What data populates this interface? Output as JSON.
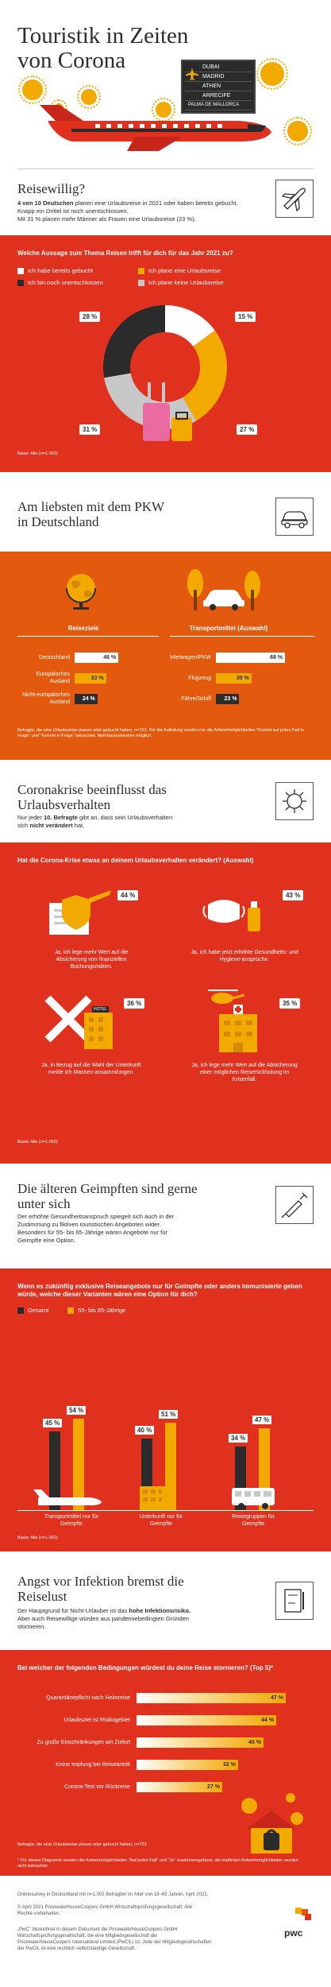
{
  "hero": {
    "title": "Touristik in Zeiten von Corona",
    "destinations": [
      "DUBAI",
      "MADRID",
      "ATHEN",
      "ARRECIFE",
      "PALMA DE MALLORCA"
    ]
  },
  "s1": {
    "title": "Reisewillig?",
    "text_bold": "4 von 10 Deutschen",
    "text_rest": " planen eine Urlaubsreise in 2021 oder haben bereits gebucht. Knapp ein Drittel ist noch unentschlossen.",
    "text2": "Mit 31 % planen mehr Männer als Frauen eine Urlaubsreise (23 %).",
    "question": "Welche Aussage zum Thema Reisen trifft für dich für das Jahr 2021 zu?",
    "base": "Basis: Alle (n=1.002)"
  },
  "chart_data": [
    {
      "type": "pie",
      "title": "Welche Aussage zum Thema Reisen trifft für dich für das Jahr 2021 zu?",
      "categories": [
        "Ich habe bereits gebucht",
        "Ich plane eine Urlaubsreise",
        "Ich bin noch unentschlossen",
        "Ich plane keine Urlaubsreise"
      ],
      "values": [
        15,
        27,
        28,
        31
      ],
      "value_labels": [
        "15 %",
        "27 %",
        "28 %",
        "31 %"
      ],
      "colors": [
        "#ffffff",
        "#f2a900",
        "#2b2b2b",
        "#c8c8c8"
      ],
      "legend_placement": "top"
    },
    {
      "type": "bar",
      "title": "Reiseziele",
      "categories": [
        "Deutschland",
        "Europäisches Ausland",
        "Nicht-europäisches Ausland"
      ],
      "values": [
        46,
        33,
        24
      ],
      "value_labels": [
        "46 %",
        "33 %",
        "24 %"
      ],
      "colors": [
        "#ffffff",
        "#f2a900",
        "#2b2b2b"
      ]
    },
    {
      "type": "bar",
      "title": "Transportmittel (Auswahl)",
      "categories": [
        "Mietwagen/PKW",
        "Flugzeug",
        "Fähre/Schiff"
      ],
      "values": [
        68,
        35,
        23
      ],
      "value_labels": [
        "68 %",
        "35 %",
        "23 %"
      ],
      "colors": [
        "#ffffff",
        "#f2a900",
        "#2b2b2b"
      ]
    },
    {
      "type": "bar",
      "title": "Wenn es zukünftig exklusive Reiseangebote nur für Geimpfte oder anders Immunisierte geben würde, welche dieser Varianten wären eine Option für dich?",
      "categories": [
        "Transportmittel nur für Geimpfte",
        "Unterkunft nur für Geimpfte",
        "Reisegruppen für Geimpfte"
      ],
      "series": [
        {
          "name": "Gesamt",
          "values": [
            45,
            40,
            34
          ],
          "labels": [
            "45 %",
            "40 %",
            "34 %"
          ],
          "color": "#2b2b2b"
        },
        {
          "name": "55- bis 65-Jährige",
          "values": [
            54,
            51,
            47
          ],
          "labels": [
            "54 %",
            "51 %",
            "47 %"
          ],
          "color": "#f2a900"
        }
      ],
      "legend_placement": "top-left"
    },
    {
      "type": "bar",
      "title": "Bei welcher der folgenden Bedingungen würdest du deine Reise stornieren? (Top 5)*",
      "categories": [
        "Quarantänepflicht nach Heimreise",
        "Urlaubsziel ist Risikogebiet",
        "Zu große Einschränkungen am Zielort",
        "Keine Impfung bei Reiseantritt",
        "Corona-Test vor Rückreise"
      ],
      "values": [
        47,
        44,
        40,
        32,
        27
      ],
      "value_labels": [
        "47 %",
        "44 %",
        "40 %",
        "32 %",
        "27 %"
      ],
      "orientation": "horizontal"
    }
  ],
  "s2": {
    "title": "Am liebsten mit dem PKW in Deutschland",
    "dest_heading": "Reiseziele",
    "trans_heading": "Transportmittel (Auswahl)",
    "note": "Befragte, die eine Urlaubsreise planen oder gebucht haben, n=723. Für die Auflistung wurden nur die Antwortmöglichkeiten \"Kommt auf jeden Fall in Frage\" und \"Kommt in Frage\" betrachtet. Mehrfachantworten möglich."
  },
  "s3": {
    "title": "Coronakrise beeinflusst das Urlaubsverhalten",
    "text_pre": "Nur jeder ",
    "text_bold": "10. Befragte",
    "text_mid": " gibt an, dass sein Urlaubsverhalten sich ",
    "text_bold2": "nicht verändert",
    "text_post": " hat.",
    "question": "Hat die Corona-Krise etwas an deinem Urlaubsverhalten verändert? (Auswahl)",
    "items": [
      {
        "pct": "44 %",
        "text": "Ja, ich lege mehr Wert auf die Absicherung von finanziellen Buchungsrisiken."
      },
      {
        "pct": "43 %",
        "text": "Ja, ich habe jetzt erhöhte Gesundheits- und Hygiene-ansprüche."
      },
      {
        "pct": "36 %",
        "text": "Ja, in Bezug auf die Wahl der Unterkunft meide ich Massen-ansammlungen."
      },
      {
        "pct": "35 %",
        "text": "Ja, ich lege mehr Wert auf die Absicherung einer möglichen Reiserückholung im Krisenfall."
      }
    ],
    "hotel_sign": "HOTEL",
    "base": "Basis: Alle (n=1.002)"
  },
  "s4": {
    "title": "Die älteren Geimpften sind gerne unter sich",
    "text": "Der erhöhte Gesundheitsanspruch spiegelt sich auch in der Zustimmung zu fiktiven touristischen Angeboten wider. Besonders für 55- bis 65-Jährige wären Angebote nur für Geimpfte eine Option.",
    "question": "Wenn es zukünftig exklusive Reiseangebote nur für Geimpfte oder anders Immunisierte geben würde, welche dieser Varianten wären eine Option für dich?",
    "base": "Basis: Alle (n=1.002)"
  },
  "s5": {
    "title": "Angst vor Infektion bremst die Reiselust",
    "text_pre": "Der Hauptgrund für Nicht-Urlauber ist das ",
    "text_bold": "hohe Infektionsrisiko.",
    "text_post": " Aber auch Reisewillige würden aus pandemiebedingten Gründen stornieren.",
    "question": "Bei welcher der folgenden Bedingungen würdest du deine Reise stornieren? (Top 5)*",
    "base": "Befragte, die eine Urlaubsreise planen oder gebucht haben, n=723",
    "note": "* Für dieses Diagramm wurden die Antwortmöglichkeiten \"Auf jeden Fall\" und \"Je\" zusammengefasst, die restlichen Antwortmöglichkeiten wurden nicht betrachtet."
  },
  "footer": {
    "l1": "Onlinesurvey in Deutschland mit n=1.002 Befragten im Alter von 18–65 Jahren, April 2021.",
    "l2": "© April 2021 PricewaterhouseCoopers GmbH Wirtschaftsprüfungsgesellschaft. Alle Rechte vorbehalten.",
    "l3": "„PwC\" bezeichnet in diesem Dokument die PricewaterhouseCoopers GmbH Wirtschaftsprüfungsgesellschaft, die eine Mitgliedsgesellschaft der PricewaterhouseCoopers International Limited (PwCIL) ist. Jede der Mitgliedsgesellschaften der PwCIL ist eine rechtlich selbstständige Gesellschaft.",
    "logo": "pwc"
  }
}
